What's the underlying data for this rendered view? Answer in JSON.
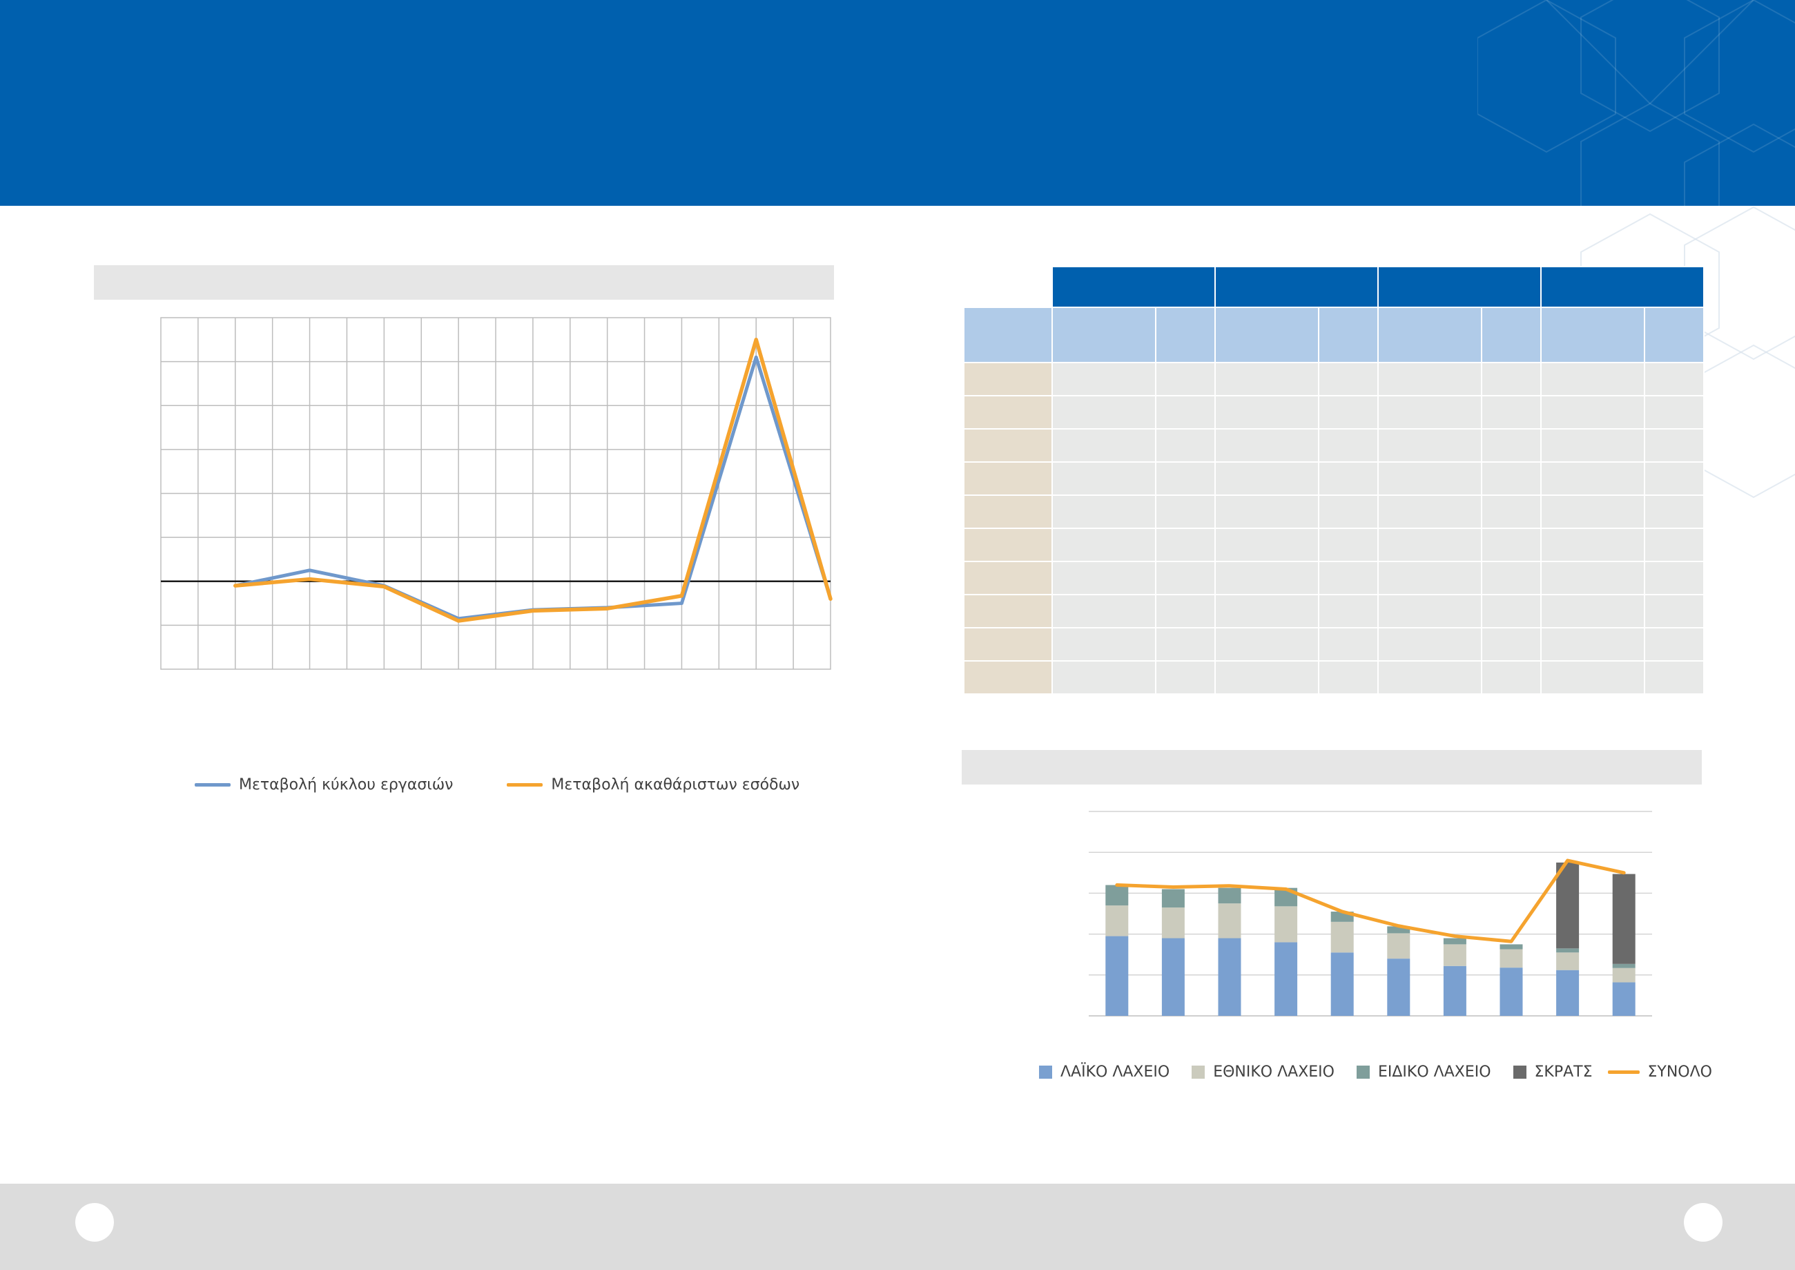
{
  "header": {
    "title": ""
  },
  "footer": {
    "page_left": "",
    "page_right": ""
  },
  "left_chart": {
    "title": "",
    "legend": [
      {
        "label": "Μεταβολή κύκλου εργασιών",
        "color": "#6f98cb"
      },
      {
        "label": "Μεταβολή ακαθάριστων εσόδων",
        "color": "#f5a32e"
      }
    ]
  },
  "table": {
    "top_headers": [
      "",
      "",
      "",
      ""
    ],
    "sub_headers": [
      "",
      "",
      "",
      "",
      "",
      "",
      "",
      ""
    ],
    "row_labels": [
      "",
      "",
      "",
      "",
      "",
      "",
      "",
      "",
      "",
      ""
    ]
  },
  "right_chart": {
    "title": "",
    "legend": [
      {
        "label": "ΛΑΪΚΟ ΛΑΧΕΙΟ",
        "color": "#7aa0d0",
        "kind": "box"
      },
      {
        "label": "ΕΘΝΙΚΟ ΛΑΧΕΙΟ",
        "color": "#cbcbbd",
        "kind": "box"
      },
      {
        "label": "ΕΙΔΙΚΟ ΛΑΧΕΙΟ",
        "color": "#7f9e9b",
        "kind": "box"
      },
      {
        "label": "ΣΚΡΑΤΣ",
        "color": "#6a6a6a",
        "kind": "box"
      },
      {
        "label": "ΣΥΝΟΛΟ",
        "color": "#f5a32e",
        "kind": "line"
      }
    ]
  },
  "chart_data": [
    {
      "type": "line",
      "title": "",
      "x": [
        1,
        2,
        3,
        4,
        5,
        6,
        7,
        8,
        9,
        10,
        11,
        12,
        13,
        14,
        15,
        16,
        17
      ],
      "ylim": [
        -2,
        6
      ],
      "grid": true,
      "legend_position": "bottom",
      "series": [
        {
          "name": "Μεταβολή κύκλου εργασιών",
          "color": "#6f98cb",
          "points": [
            [
              2,
              -0.1
            ],
            [
              4,
              0.25
            ],
            [
              6,
              -0.1
            ],
            [
              8,
              -0.85
            ],
            [
              10,
              -0.65
            ],
            [
              12,
              -0.6
            ],
            [
              14,
              -0.5
            ],
            [
              16,
              5.1
            ],
            [
              18,
              -0.4
            ]
          ]
        },
        {
          "name": "Μεταβολή ακαθάριστων εσόδων",
          "color": "#f5a32e",
          "points": [
            [
              2,
              -0.1
            ],
            [
              4,
              0.05
            ],
            [
              6,
              -0.12
            ],
            [
              8,
              -0.9
            ],
            [
              10,
              -0.67
            ],
            [
              12,
              -0.62
            ],
            [
              14,
              -0.33
            ],
            [
              16,
              5.5
            ],
            [
              18,
              -0.4
            ]
          ]
        }
      ]
    },
    {
      "type": "bar",
      "stacked": true,
      "title": "",
      "categories": [
        "",
        "",
        "",
        "",
        "",
        "",
        "",
        "",
        "",
        ""
      ],
      "ylim": [
        0,
        5
      ],
      "grid": true,
      "legend_position": "bottom",
      "series": [
        {
          "name": "ΛΑΪΚΟ ΛΑΧΕΙΟ",
          "color": "#7aa0d0",
          "values": [
            1.95,
            1.9,
            1.9,
            1.8,
            1.55,
            1.4,
            1.22,
            1.18,
            1.12,
            0.82
          ]
        },
        {
          "name": "ΕΘΝΙΚΟ ΛΑΧΕΙΟ",
          "color": "#cbcbbd",
          "values": [
            0.75,
            0.75,
            0.85,
            0.88,
            0.75,
            0.62,
            0.53,
            0.45,
            0.43,
            0.35
          ]
        },
        {
          "name": "ΕΙΔΙΚΟ ΛΑΧΕΙΟ",
          "color": "#7f9e9b",
          "values": [
            0.5,
            0.45,
            0.38,
            0.45,
            0.25,
            0.17,
            0.15,
            0.12,
            0.1,
            0.1
          ]
        },
        {
          "name": "ΣΚΡΑΤΣ",
          "color": "#6a6a6a",
          "values": [
            0,
            0,
            0,
            0,
            0,
            0,
            0,
            0,
            2.1,
            2.2
          ]
        },
        {
          "name": "ΣΥΝΟΛΟ",
          "color": "#f5a32e",
          "type": "line",
          "values": [
            3.2,
            3.15,
            3.18,
            3.1,
            2.55,
            2.2,
            1.95,
            1.82,
            3.8,
            3.5
          ]
        }
      ]
    }
  ]
}
